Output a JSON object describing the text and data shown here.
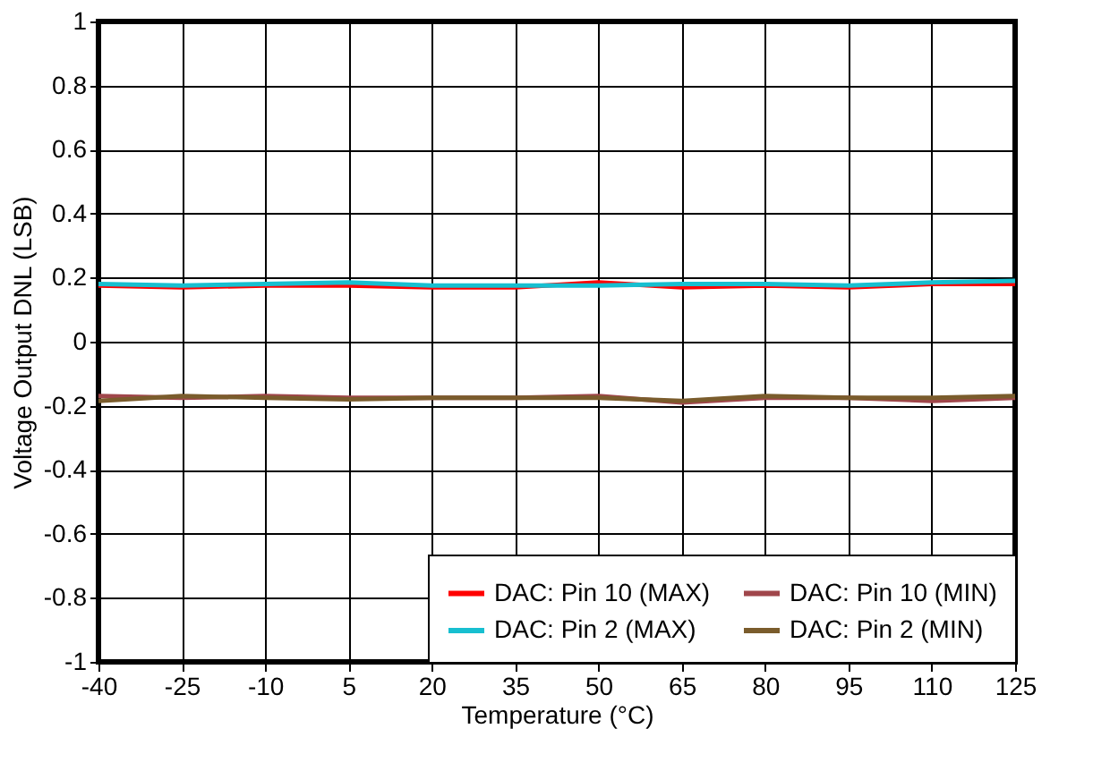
{
  "chart_data": {
    "type": "line",
    "xlabel": "Temperature (°C)",
    "ylabel": "Voltage Output DNL (LSB)",
    "x": [
      -40,
      -25,
      -10,
      5,
      20,
      35,
      50,
      65,
      80,
      95,
      110,
      125
    ],
    "series": [
      {
        "name": "DAC: Pin 10 (MAX)",
        "color": "#ff0000",
        "values": [
          0.175,
          0.17,
          0.175,
          0.175,
          0.17,
          0.17,
          0.185,
          0.17,
          0.175,
          0.17,
          0.18,
          0.18
        ]
      },
      {
        "name": "DAC: Pin 2 (MAX)",
        "color": "#17bfd0",
        "values": [
          0.18,
          0.175,
          0.18,
          0.185,
          0.175,
          0.175,
          0.175,
          0.18,
          0.18,
          0.175,
          0.185,
          0.19
        ]
      },
      {
        "name": "DAC: Pin 10 (MIN)",
        "color": "#a0464b",
        "values": [
          -0.17,
          -0.175,
          -0.17,
          -0.175,
          -0.175,
          -0.175,
          -0.17,
          -0.19,
          -0.175,
          -0.175,
          -0.185,
          -0.175
        ]
      },
      {
        "name": "DAC: Pin 2  (MIN)",
        "color": "#7a5c2c",
        "values": [
          -0.185,
          -0.17,
          -0.175,
          -0.18,
          -0.175,
          -0.175,
          -0.175,
          -0.185,
          -0.17,
          -0.175,
          -0.175,
          -0.17
        ]
      }
    ],
    "xlim": [
      -40,
      125
    ],
    "xticks": [
      -40,
      -25,
      -10,
      5,
      20,
      35,
      50,
      65,
      80,
      95,
      110,
      125
    ],
    "ylim": [
      -1,
      1
    ],
    "yticks": [
      -1,
      -0.8,
      -0.6,
      -0.4,
      -0.2,
      0,
      0.2,
      0.4,
      0.6,
      0.8,
      1
    ],
    "grid": true,
    "legend": "bottom right",
    "marker": "none",
    "line_style": "solid"
  }
}
